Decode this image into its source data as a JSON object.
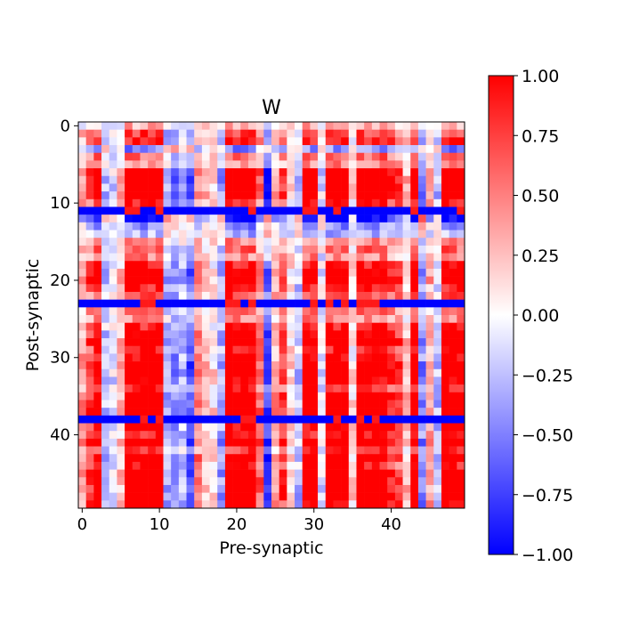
{
  "chart_data": {
    "type": "heatmap",
    "title": "W",
    "xlabel": "Pre-synaptic",
    "ylabel": "Post-synaptic",
    "rows": 50,
    "cols": 50,
    "x_ticks": [
      0,
      10,
      20,
      30,
      40
    ],
    "y_ticks": [
      0,
      10,
      20,
      30,
      40
    ],
    "colorbar": {
      "cmap": "bwr",
      "vmin": -1.0,
      "vmax": 1.0,
      "ticks": [
        1.0,
        0.75,
        0.5,
        0.25,
        0.0,
        -0.25,
        -0.5,
        -0.75,
        -1.0
      ],
      "tick_labels": [
        "1.00",
        "0.75",
        "0.50",
        "0.25",
        "0.00",
        "−0.25",
        "−0.50",
        "−0.75",
        "−1.00"
      ]
    },
    "column_pattern": [
      0.3,
      0.6,
      0.9,
      -0.2,
      -0.1,
      0.2,
      0.95,
      0.95,
      0.95,
      0.95,
      0.95,
      -0.3,
      -0.4,
      -0.2,
      -0.5,
      0.4,
      0.2,
      0.1,
      -0.3,
      0.95,
      0.95,
      0.95,
      0.95,
      0.5,
      -0.6,
      0.3,
      0.6,
      0.1,
      -0.2,
      0.95,
      0.95,
      -0.1,
      0.95,
      0.95,
      0.95,
      0.1,
      0.95,
      0.95,
      0.95,
      0.95,
      0.7,
      0.6,
      0.2,
      0.95,
      -0.4,
      0.3,
      -0.2,
      0.95,
      0.95,
      0.95
    ],
    "row_pattern": [
      0.2,
      0.5,
      0.6,
      -0.3,
      0.4,
      0.3,
      0.85,
      0.85,
      0.85,
      0.85,
      0.6,
      -1.0,
      -0.7,
      -0.3,
      -0.2,
      0.3,
      0.4,
      0.3,
      0.6,
      0.75,
      0.85,
      0.6,
      0.5,
      -1.0,
      0.4,
      0.3,
      0.6,
      0.75,
      0.85,
      0.6,
      0.7,
      0.85,
      0.85,
      0.7,
      0.6,
      0.85,
      0.85,
      0.85,
      -1.0,
      0.7,
      0.6,
      0.85,
      0.5,
      0.85,
      0.6,
      0.85,
      0.85,
      0.85,
      0.85,
      0.75
    ],
    "mixing": "value[i][j] = clip(column_pattern[j] * row_pattern[i] * 1.6 with per-cell variation, -1, 1); rows 11, 23 and 38 are strongly negative (−1.0) across most columns"
  }
}
